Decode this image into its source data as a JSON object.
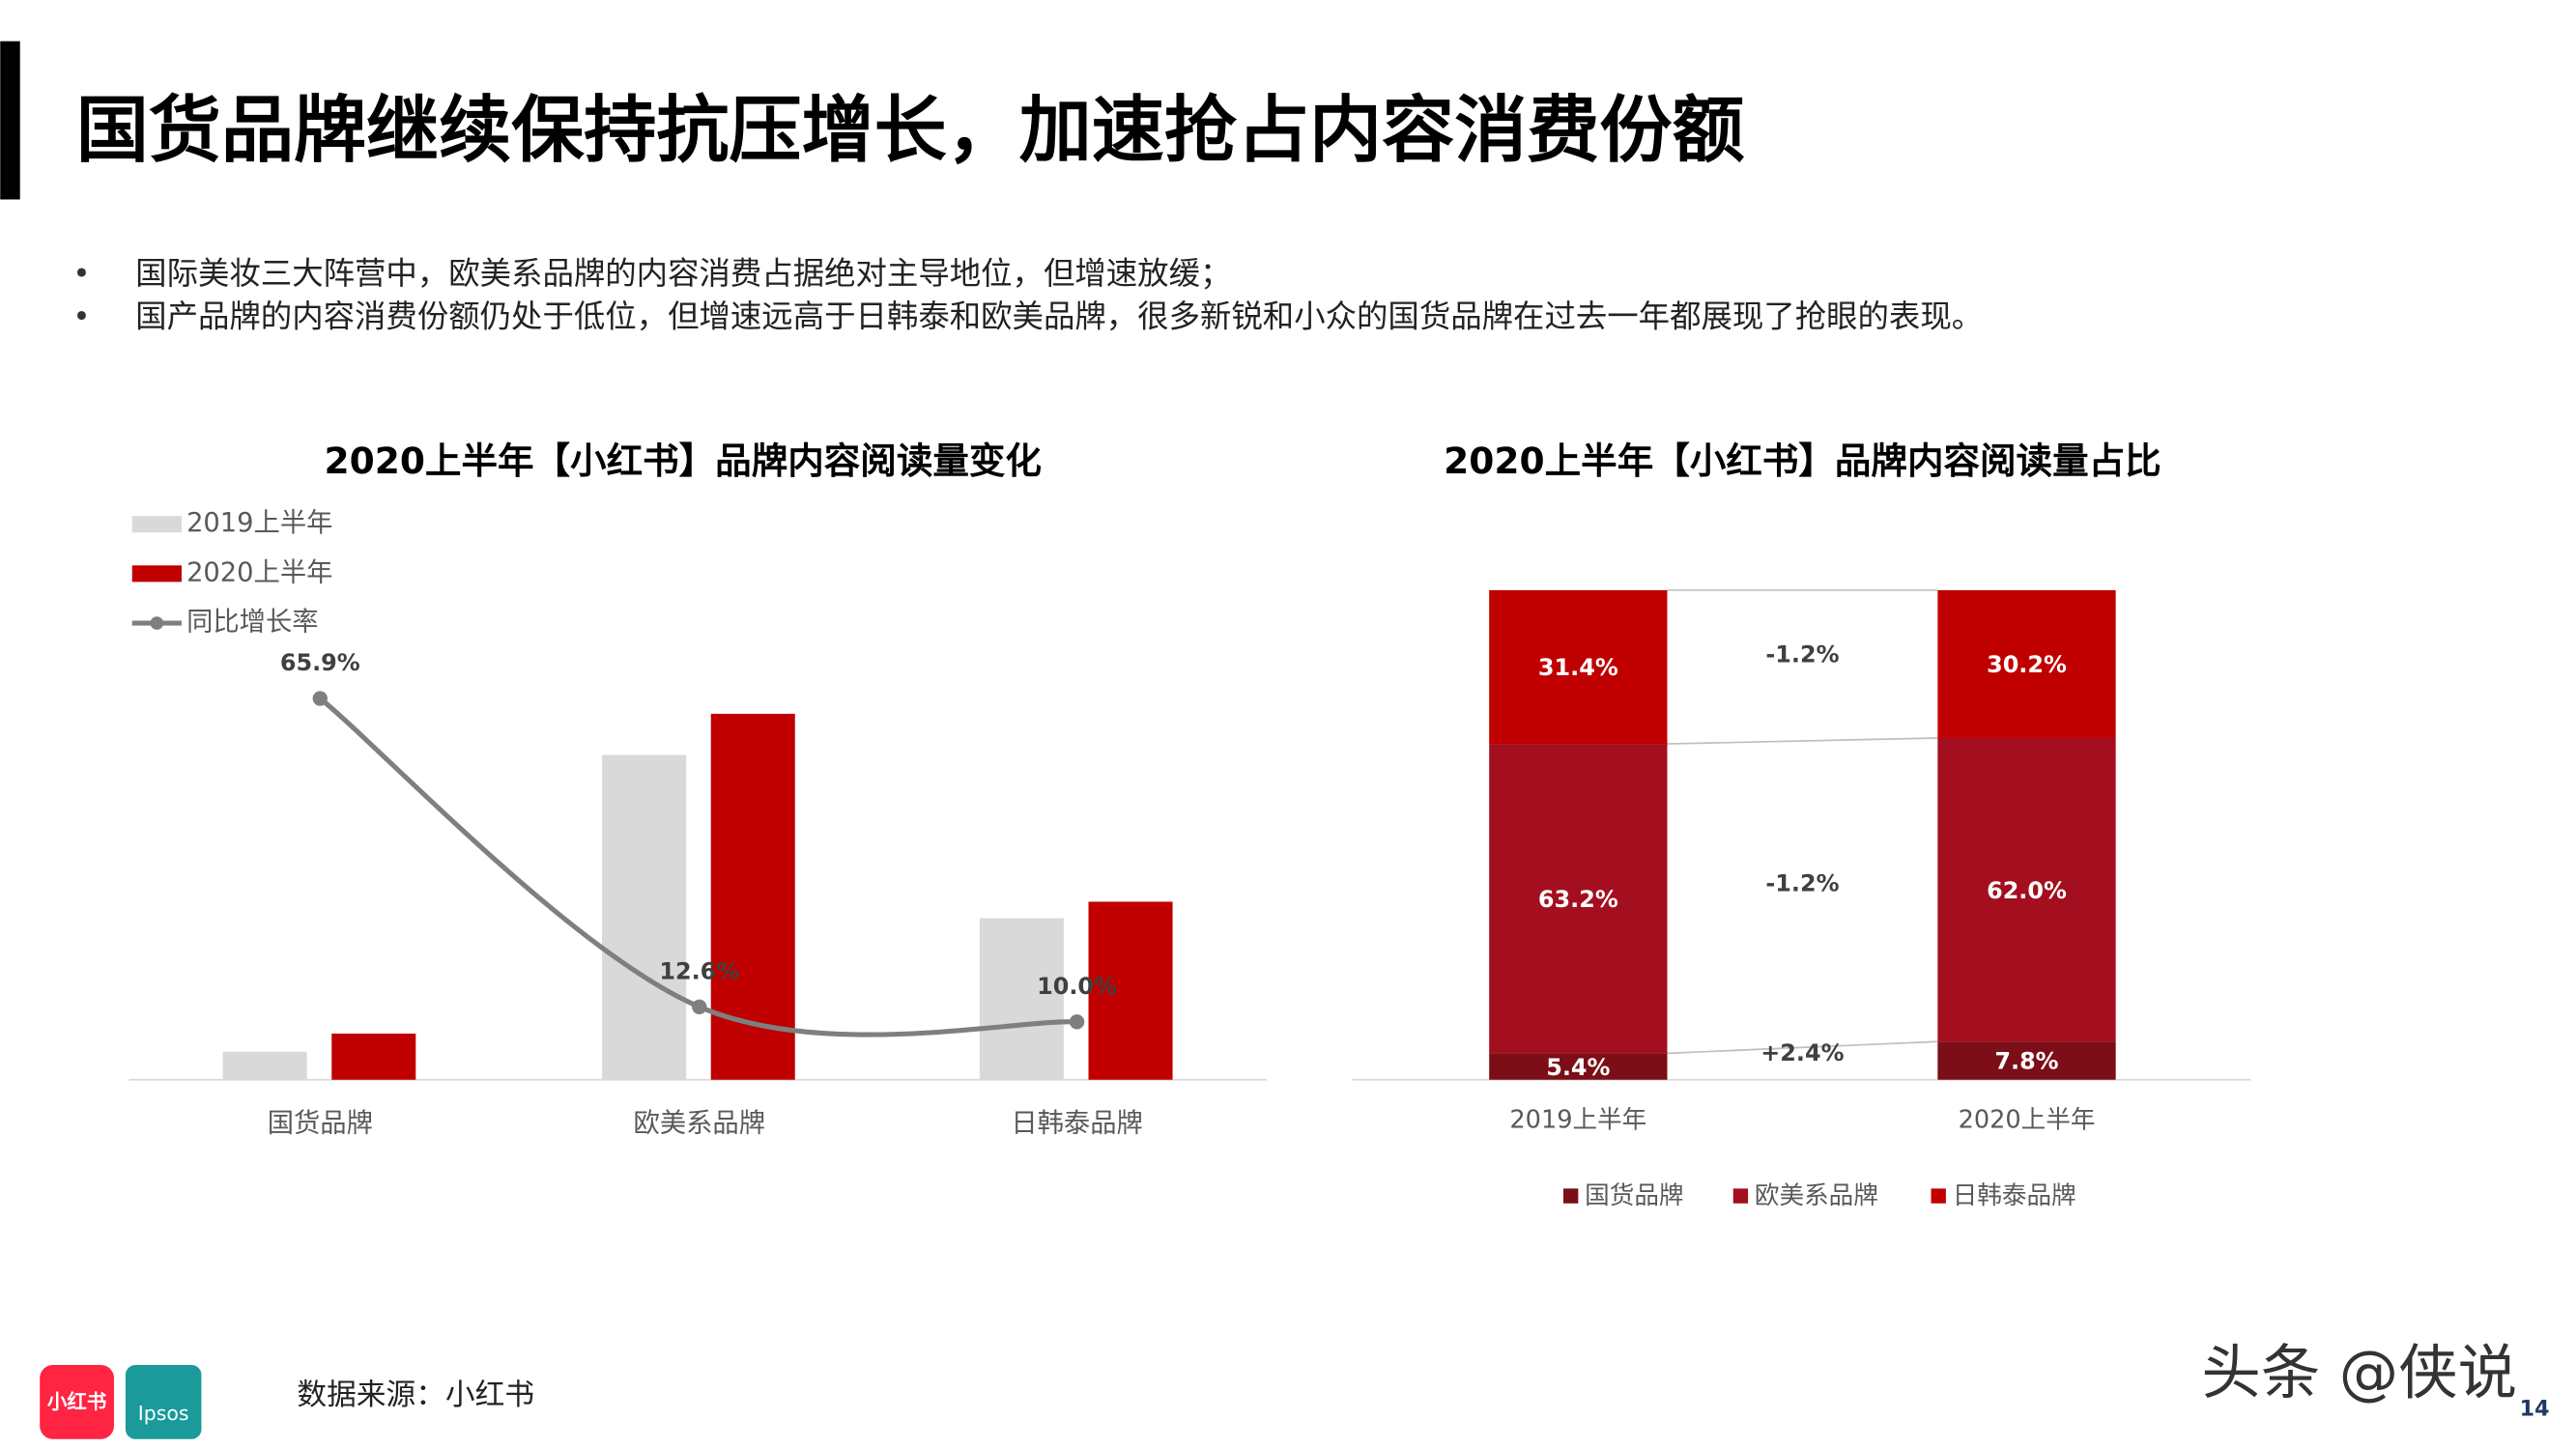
{
  "header": {
    "title": "国货品牌继续保持抗压增长，加速抢占内容消费份额"
  },
  "bullets": [
    "国际美妆三大阵营中，欧美系品牌的内容消费占据绝对主导地位，但增速放缓；",
    "国产品牌的内容消费份额仍处于低位，但增速远高于日韩泰和欧美品牌，很多新锐和小众的国货品牌在过去一年都展现了抢眼的表现。"
  ],
  "chart_data": [
    {
      "type": "bar",
      "title": "2020上半年【小红书】品牌内容阅读量变化",
      "categories": [
        "国货品牌",
        "欧美系品牌",
        "日韩泰品牌"
      ],
      "series": [
        {
          "name": "2019上半年",
          "color": "#d9d9d9",
          "values": [
            17,
            197,
            98
          ]
        },
        {
          "name": "2020上半年",
          "color": "#c00000",
          "values": [
            28,
            222,
            108
          ]
        },
        {
          "name": "同比增长率",
          "type": "line",
          "color": "#7f7f7f",
          "values": [
            65.9,
            12.6,
            10.0
          ],
          "value_labels": [
            "65.9%",
            "12.6%",
            "10.0%"
          ]
        }
      ]
    },
    {
      "type": "stacked_bar_100",
      "title": "2020上半年【小红书】品牌内容阅读量占比",
      "categories": [
        "2019上半年",
        "2020上半年"
      ],
      "series": [
        {
          "name": "国货品牌",
          "color": "#7b0e16",
          "values": [
            5.4,
            7.8
          ],
          "value_labels": [
            "5.4%",
            "7.8%"
          ],
          "change_label": "+2.4%"
        },
        {
          "name": "欧美系品牌",
          "color": "#a30f1e",
          "values": [
            63.2,
            62.0
          ],
          "value_labels": [
            "63.2%",
            "62.0%"
          ],
          "change_label": "-1.2%"
        },
        {
          "name": "日韩泰品牌",
          "color": "#c00000",
          "values": [
            31.4,
            30.2
          ],
          "value_labels": [
            "31.4%",
            "30.2%"
          ],
          "change_label": "-1.2%"
        }
      ]
    }
  ],
  "footer": {
    "source": "数据来源：小红书",
    "logo_1": "小红书",
    "logo_2": "Ipsos",
    "watermark": "头条 @侠说",
    "page_number": "14"
  }
}
